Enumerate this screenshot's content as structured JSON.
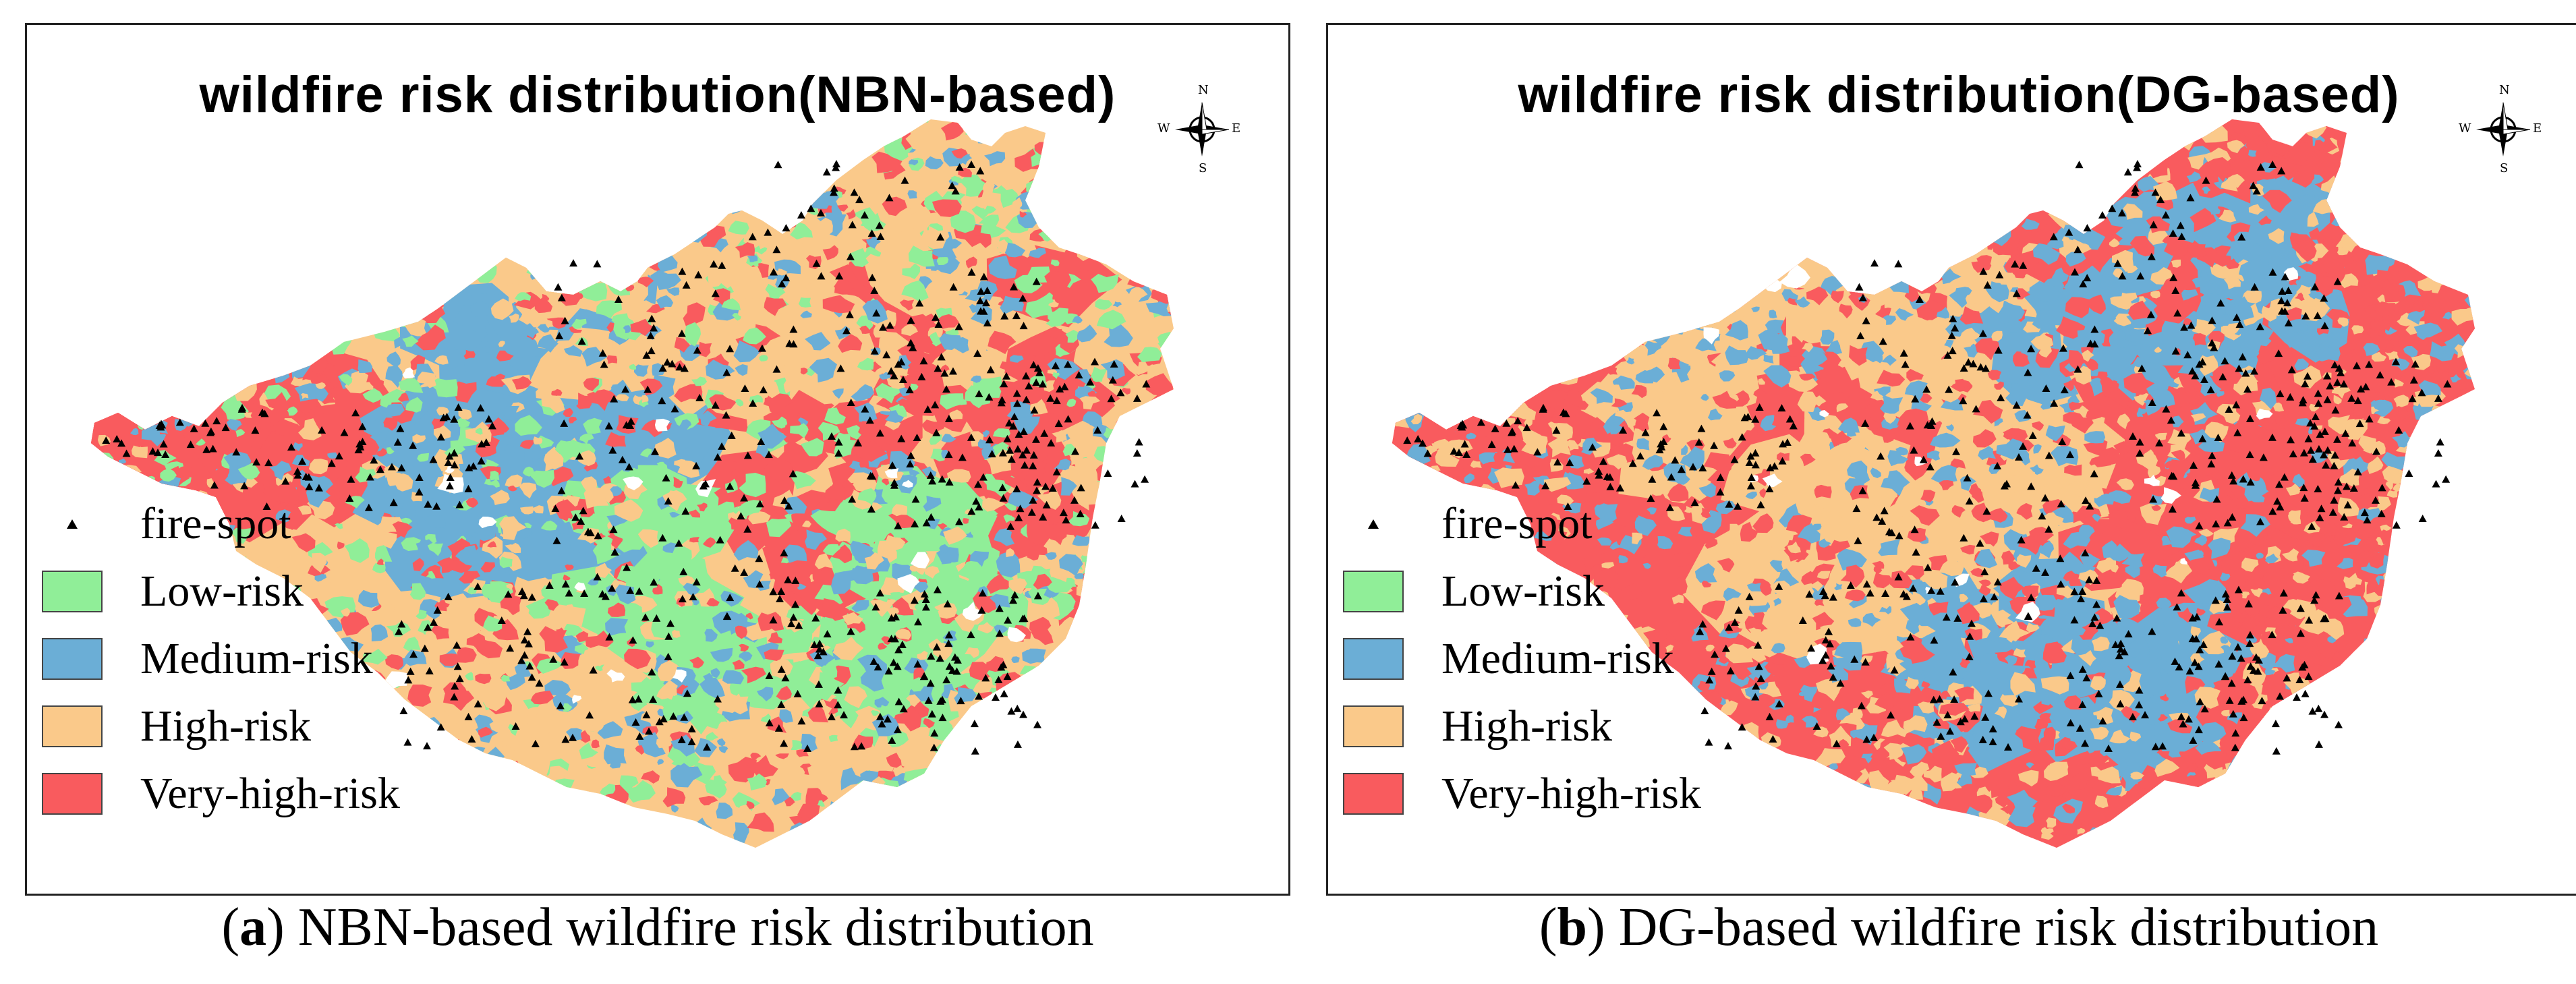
{
  "panels": [
    {
      "id": "a",
      "title": "wildfire risk distribution(NBN-based)",
      "caption_letter": "a",
      "caption_text": "NBN-based wildfire risk distribution",
      "dominant_classes": [
        "Very-high-risk",
        "Medium-risk",
        "High-risk",
        "Low-risk"
      ]
    },
    {
      "id": "b",
      "title": "wildfire risk distribution(DG-based)",
      "caption_letter": "b",
      "caption_text": "DG-based wildfire risk distribution",
      "dominant_classes": [
        "High-risk",
        "Medium-risk",
        "Very-high-risk"
      ]
    }
  ],
  "legend": {
    "fire_spot": "fire-spot",
    "items": [
      {
        "label": "Low-risk",
        "color": "#90EE98"
      },
      {
        "label": "Medium-risk",
        "color": "#6BAED6"
      },
      {
        "label": "High-risk",
        "color": "#FAC98A"
      },
      {
        "label": "Very-high-risk",
        "color": "#F95B5E"
      }
    ]
  },
  "compass": {
    "n": "N",
    "s": "S",
    "e": "E",
    "w": "W"
  },
  "fire_spot_color": "#000000"
}
